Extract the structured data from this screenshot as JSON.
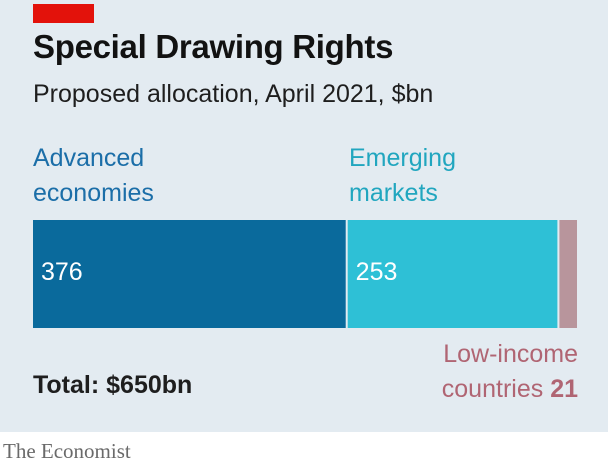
{
  "chart_data": {
    "type": "bar",
    "orientation": "horizontal-stacked",
    "title": "Special Drawing Rights",
    "subtitle": "Proposed allocation, April 2021, $bn",
    "unit": "$bn",
    "total": 650,
    "total_label": "Total: $650bn",
    "series": [
      {
        "name": "Advanced\neconomies",
        "value": 376,
        "value_label": "376",
        "color": "#0a6a9c",
        "label_color": "#1b6ea8"
      },
      {
        "name": "Emerging\nmarkets",
        "value": 253,
        "value_label": "253",
        "color": "#2ec0d6",
        "label_color": "#21a6bf"
      },
      {
        "name": "Low-income\ncountries",
        "value": 21,
        "value_label": "21",
        "color": "#b8959c",
        "label_color": "#b06573"
      }
    ]
  },
  "brand": {
    "source": "The Economist",
    "accent_color": "#e3120b"
  }
}
